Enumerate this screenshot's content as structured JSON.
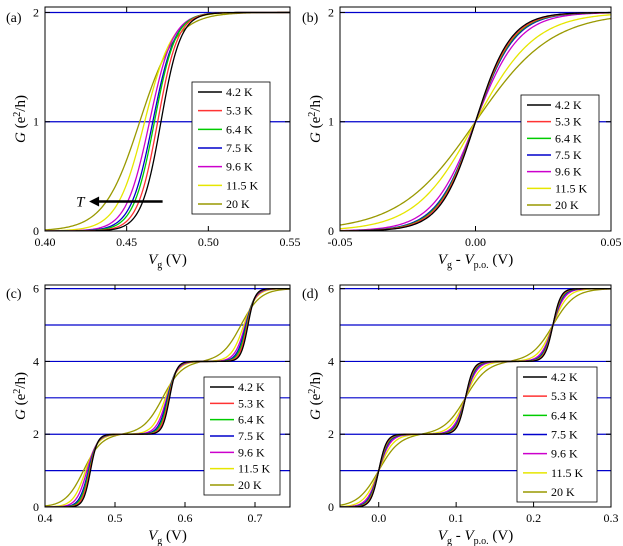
{
  "colors": {
    "4.2 K": "#000000",
    "5.3 K": "#ff3333",
    "6.4 K": "#00cc00",
    "7.5 K": "#0000cc",
    "9.6 K": "#cc00cc",
    "11.5 K": "#e6e600",
    "20 K": "#999900",
    "gridline": "#0000cc"
  },
  "chart_data": [
    {
      "type": "line",
      "panel_label": "(a)",
      "xlabel": {
        "main": "V",
        "sub": "g",
        "unit": "(V)"
      },
      "ylabel": {
        "main": "G",
        "unit": "(e",
        "sup": "2",
        "tail": "/h)"
      },
      "xlim": [
        0.4,
        0.55
      ],
      "ylim": [
        0,
        2.05
      ],
      "xticks": [
        0.4,
        0.45,
        0.5,
        0.55
      ],
      "xticklabels": [
        "0.40",
        "0.45",
        "0.50",
        "0.55"
      ],
      "yticks": [
        0,
        1,
        2
      ],
      "yticklabels": [
        "0",
        "1",
        "2"
      ],
      "hlines": [
        1,
        2
      ],
      "legend_placement": "center-right",
      "annotation": {
        "text": "T",
        "arrow": "pointing left (decreasing gate voltage with increasing T)"
      },
      "series": [
        {
          "name": "4.2 K",
          "kind": "step",
          "steps": [
            {
              "x0": 0.471,
              "w": 0.006
            }
          ],
          "sat": [
            {
              "x": 0.5,
              "y": 2.0
            }
          ]
        },
        {
          "name": "5.3 K",
          "kind": "step",
          "steps": [
            {
              "x0": 0.469,
              "w": 0.0062
            }
          ]
        },
        {
          "name": "6.4 K",
          "kind": "step",
          "steps": [
            {
              "x0": 0.467,
              "w": 0.0065
            }
          ]
        },
        {
          "name": "7.5 K",
          "kind": "step",
          "steps": [
            {
              "x0": 0.466,
              "w": 0.0068
            }
          ]
        },
        {
          "name": "9.6 K",
          "kind": "step",
          "steps": [
            {
              "x0": 0.464,
              "w": 0.0072
            }
          ]
        },
        {
          "name": "11.5 K",
          "kind": "step",
          "steps": [
            {
              "x0": 0.461,
              "w": 0.0085
            }
          ]
        },
        {
          "name": "20 K",
          "kind": "step",
          "steps": [
            {
              "x0": 0.458,
              "w": 0.011
            }
          ]
        }
      ]
    },
    {
      "type": "line",
      "panel_label": "(b)",
      "xlabel": {
        "main": "V",
        "sub": "g",
        "mid": " - V",
        "sub2": "p.o.",
        "unit": "(V)"
      },
      "ylabel": {
        "main": "G",
        "unit": "(e",
        "sup": "2",
        "tail": "/h)"
      },
      "xlim": [
        -0.05,
        0.05
      ],
      "ylim": [
        0,
        2.05
      ],
      "xticks": [
        -0.05,
        0.0,
        0.05
      ],
      "xticklabels": [
        "-0.05",
        "0.00",
        "0.05"
      ],
      "yticks": [
        0,
        1,
        2
      ],
      "yticklabels": [
        "0",
        "1",
        "2"
      ],
      "hlines": [
        1,
        2
      ],
      "legend_placement": "right",
      "series": [
        {
          "name": "4.2 K",
          "kind": "step",
          "steps": [
            {
              "x0": 0.0,
              "w": 0.0065
            }
          ]
        },
        {
          "name": "5.3 K",
          "kind": "step",
          "steps": [
            {
              "x0": 0.0,
              "w": 0.0068
            }
          ]
        },
        {
          "name": "6.4 K",
          "kind": "step",
          "steps": [
            {
              "x0": 0.0,
              "w": 0.007
            }
          ]
        },
        {
          "name": "7.5 K",
          "kind": "step",
          "steps": [
            {
              "x0": 0.0,
              "w": 0.0072
            }
          ]
        },
        {
          "name": "9.6 K",
          "kind": "step",
          "steps": [
            {
              "x0": 0.0,
              "w": 0.008
            }
          ]
        },
        {
          "name": "11.5 K",
          "kind": "step",
          "steps": [
            {
              "x0": 0.0,
              "w": 0.011
            }
          ]
        },
        {
          "name": "20 K",
          "kind": "step",
          "steps": [
            {
              "x0": 0.0,
              "w": 0.014
            }
          ]
        }
      ]
    },
    {
      "type": "line",
      "panel_label": "(c)",
      "xlabel": {
        "main": "V",
        "sub": "g",
        "unit": "(V)"
      },
      "ylabel": {
        "main": "G",
        "unit": "(e",
        "sup": "2",
        "tail": "/h)"
      },
      "xlim": [
        0.4,
        0.75
      ],
      "ylim": [
        0,
        6.1
      ],
      "xticks": [
        0.4,
        0.5,
        0.6,
        0.7
      ],
      "xticklabels": [
        "0.4",
        "0.5",
        "0.6",
        "0.7"
      ],
      "yticks": [
        0,
        2,
        4,
        6
      ],
      "yticklabels": [
        "0",
        "2",
        "4",
        "6"
      ],
      "hlines": [
        1,
        2,
        3,
        4,
        5,
        6
      ],
      "legend_placement": "right",
      "series": [
        {
          "name": "4.2 K",
          "kind": "step",
          "steps": [
            {
              "x0": 0.465,
              "w": 0.005
            },
            {
              "x0": 0.578,
              "w": 0.005
            },
            {
              "x0": 0.69,
              "w": 0.005
            }
          ]
        },
        {
          "name": "5.3 K",
          "kind": "step",
          "steps": [
            {
              "x0": 0.464,
              "w": 0.0055
            },
            {
              "x0": 0.577,
              "w": 0.0055
            },
            {
              "x0": 0.689,
              "w": 0.0055
            }
          ]
        },
        {
          "name": "6.4 K",
          "kind": "step",
          "steps": [
            {
              "x0": 0.463,
              "w": 0.006
            },
            {
              "x0": 0.576,
              "w": 0.006
            },
            {
              "x0": 0.688,
              "w": 0.006
            }
          ]
        },
        {
          "name": "7.5 K",
          "kind": "step",
          "steps": [
            {
              "x0": 0.462,
              "w": 0.0065
            },
            {
              "x0": 0.575,
              "w": 0.0065
            },
            {
              "x0": 0.687,
              "w": 0.0065
            }
          ]
        },
        {
          "name": "9.6 K",
          "kind": "step",
          "steps": [
            {
              "x0": 0.46,
              "w": 0.0075
            },
            {
              "x0": 0.574,
              "w": 0.0075
            },
            {
              "x0": 0.686,
              "w": 0.0075
            }
          ]
        },
        {
          "name": "11.5 K",
          "kind": "step",
          "steps": [
            {
              "x0": 0.458,
              "w": 0.009
            },
            {
              "x0": 0.572,
              "w": 0.009
            },
            {
              "x0": 0.684,
              "w": 0.009
            }
          ]
        },
        {
          "name": "20 K",
          "kind": "step",
          "steps": [
            {
              "x0": 0.455,
              "w": 0.013
            },
            {
              "x0": 0.568,
              "w": 0.014
            },
            {
              "x0": 0.68,
              "w": 0.014
            }
          ]
        }
      ]
    },
    {
      "type": "line",
      "panel_label": "(d)",
      "xlabel": {
        "main": "V",
        "sub": "g",
        "mid": " - V",
        "sub2": "p.o.",
        "unit": "(V)"
      },
      "ylabel": {
        "main": "G",
        "unit": "(e",
        "sup": "2",
        "tail": "/h)"
      },
      "xlim": [
        -0.05,
        0.3
      ],
      "ylim": [
        0,
        6.1
      ],
      "xticks": [
        0.0,
        0.1,
        0.2,
        0.3
      ],
      "xticklabels": [
        "0.0",
        "0.1",
        "0.2",
        "0.3"
      ],
      "yticks": [
        0,
        2,
        4,
        6
      ],
      "yticklabels": [
        "0",
        "2",
        "4",
        "6"
      ],
      "hlines": [
        1,
        2,
        3,
        4,
        5,
        6
      ],
      "legend_placement": "right",
      "series": [
        {
          "name": "4.2 K",
          "kind": "step",
          "steps": [
            {
              "x0": 0.0,
              "w": 0.005
            },
            {
              "x0": 0.112,
              "w": 0.005
            },
            {
              "x0": 0.225,
              "w": 0.005
            }
          ]
        },
        {
          "name": "5.3 K",
          "kind": "step",
          "steps": [
            {
              "x0": 0.0,
              "w": 0.0055
            },
            {
              "x0": 0.112,
              "w": 0.0055
            },
            {
              "x0": 0.225,
              "w": 0.0055
            }
          ]
        },
        {
          "name": "6.4 K",
          "kind": "step",
          "steps": [
            {
              "x0": 0.0,
              "w": 0.006
            },
            {
              "x0": 0.112,
              "w": 0.006
            },
            {
              "x0": 0.225,
              "w": 0.006
            }
          ]
        },
        {
          "name": "7.5 K",
          "kind": "step",
          "steps": [
            {
              "x0": 0.0,
              "w": 0.0065
            },
            {
              "x0": 0.112,
              "w": 0.0065
            },
            {
              "x0": 0.225,
              "w": 0.0065
            }
          ]
        },
        {
          "name": "9.6 K",
          "kind": "step",
          "steps": [
            {
              "x0": 0.0,
              "w": 0.0075
            },
            {
              "x0": 0.112,
              "w": 0.0075
            },
            {
              "x0": 0.225,
              "w": 0.0075
            }
          ]
        },
        {
          "name": "11.5 K",
          "kind": "step",
          "steps": [
            {
              "x0": 0.0,
              "w": 0.0095
            },
            {
              "x0": 0.112,
              "w": 0.0095
            },
            {
              "x0": 0.225,
              "w": 0.0095
            }
          ]
        },
        {
          "name": "20 K",
          "kind": "step",
          "steps": [
            {
              "x0": 0.0,
              "w": 0.0135
            },
            {
              "x0": 0.112,
              "w": 0.014
            },
            {
              "x0": 0.225,
              "w": 0.014
            }
          ]
        }
      ]
    }
  ]
}
